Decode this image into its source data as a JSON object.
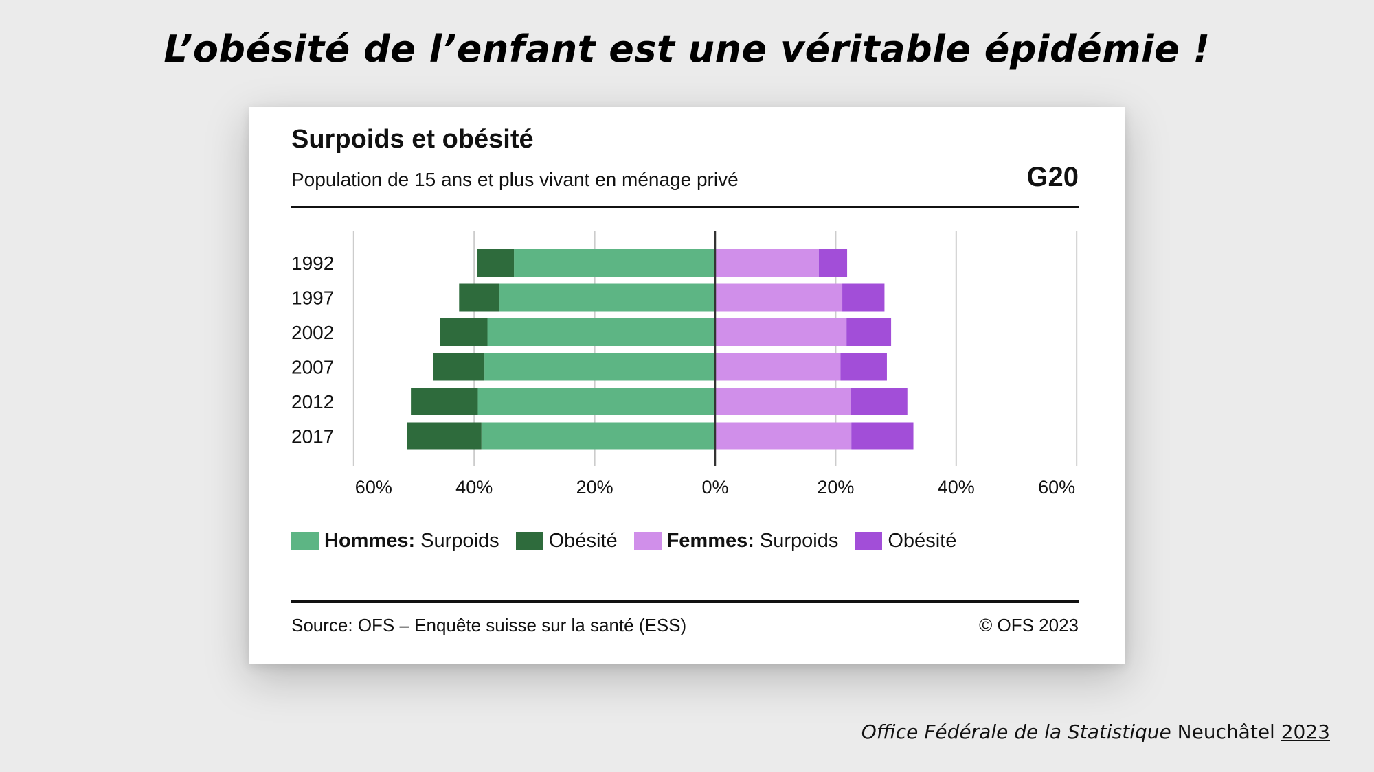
{
  "slide_title": "L’obésité de l’enfant est une véritable épidémie !",
  "footer": {
    "org_italic": "Office Fédérale de la Statistique",
    "place": "Neuchâtel",
    "year": "2023"
  },
  "card": {
    "title": "Surpoids et obésité",
    "subtitle": "Population de 15 ans et plus vivant en ménage privé",
    "code": "G20",
    "source": "Source: OFS – Enquête suisse sur la santé (ESS)",
    "copyright": "© OFS 2023"
  },
  "legend": {
    "men_group": "Hommes:",
    "men_overweight": "Surpoids",
    "men_obesity": "Obésité",
    "women_group": "Femmes:",
    "women_overweight": "Surpoids",
    "women_obesity": "Obésité"
  },
  "colors": {
    "men_overweight": "#5db584",
    "men_obesity": "#2e6b3c",
    "women_overweight": "#d08fea",
    "women_obesity": "#a24ed8",
    "grid": "#cccccc",
    "axis": "#333333"
  },
  "chart_data": {
    "type": "bar",
    "orientation": "horizontal-diverging",
    "title": "Surpoids et obésité",
    "subtitle": "Population de 15 ans et plus vivant en ménage privé",
    "categories": [
      "1992",
      "1997",
      "2002",
      "2007",
      "2012",
      "2017"
    ],
    "xlim": [
      -60,
      60
    ],
    "x_ticks": [
      -60,
      -40,
      -20,
      0,
      20,
      40,
      60
    ],
    "x_tick_labels": [
      "60%",
      "40%",
      "20%",
      "0%",
      "20%",
      "40%",
      "60%"
    ],
    "series": [
      {
        "name": "Hommes: Surpoids",
        "side": "left",
        "values": [
          33.4,
          35.8,
          37.8,
          38.3,
          39.4,
          38.8
        ]
      },
      {
        "name": "Hommes: Obésité",
        "side": "left",
        "values": [
          6.1,
          6.7,
          7.9,
          8.5,
          11.1,
          12.3
        ]
      },
      {
        "name": "Femmes: Surpoids",
        "side": "right",
        "values": [
          17.2,
          21.1,
          21.8,
          20.8,
          22.5,
          22.6
        ]
      },
      {
        "name": "Femmes: Obésité",
        "side": "right",
        "values": [
          4.7,
          7.0,
          7.4,
          7.7,
          9.4,
          10.3
        ]
      }
    ],
    "legend_position": "bottom"
  }
}
